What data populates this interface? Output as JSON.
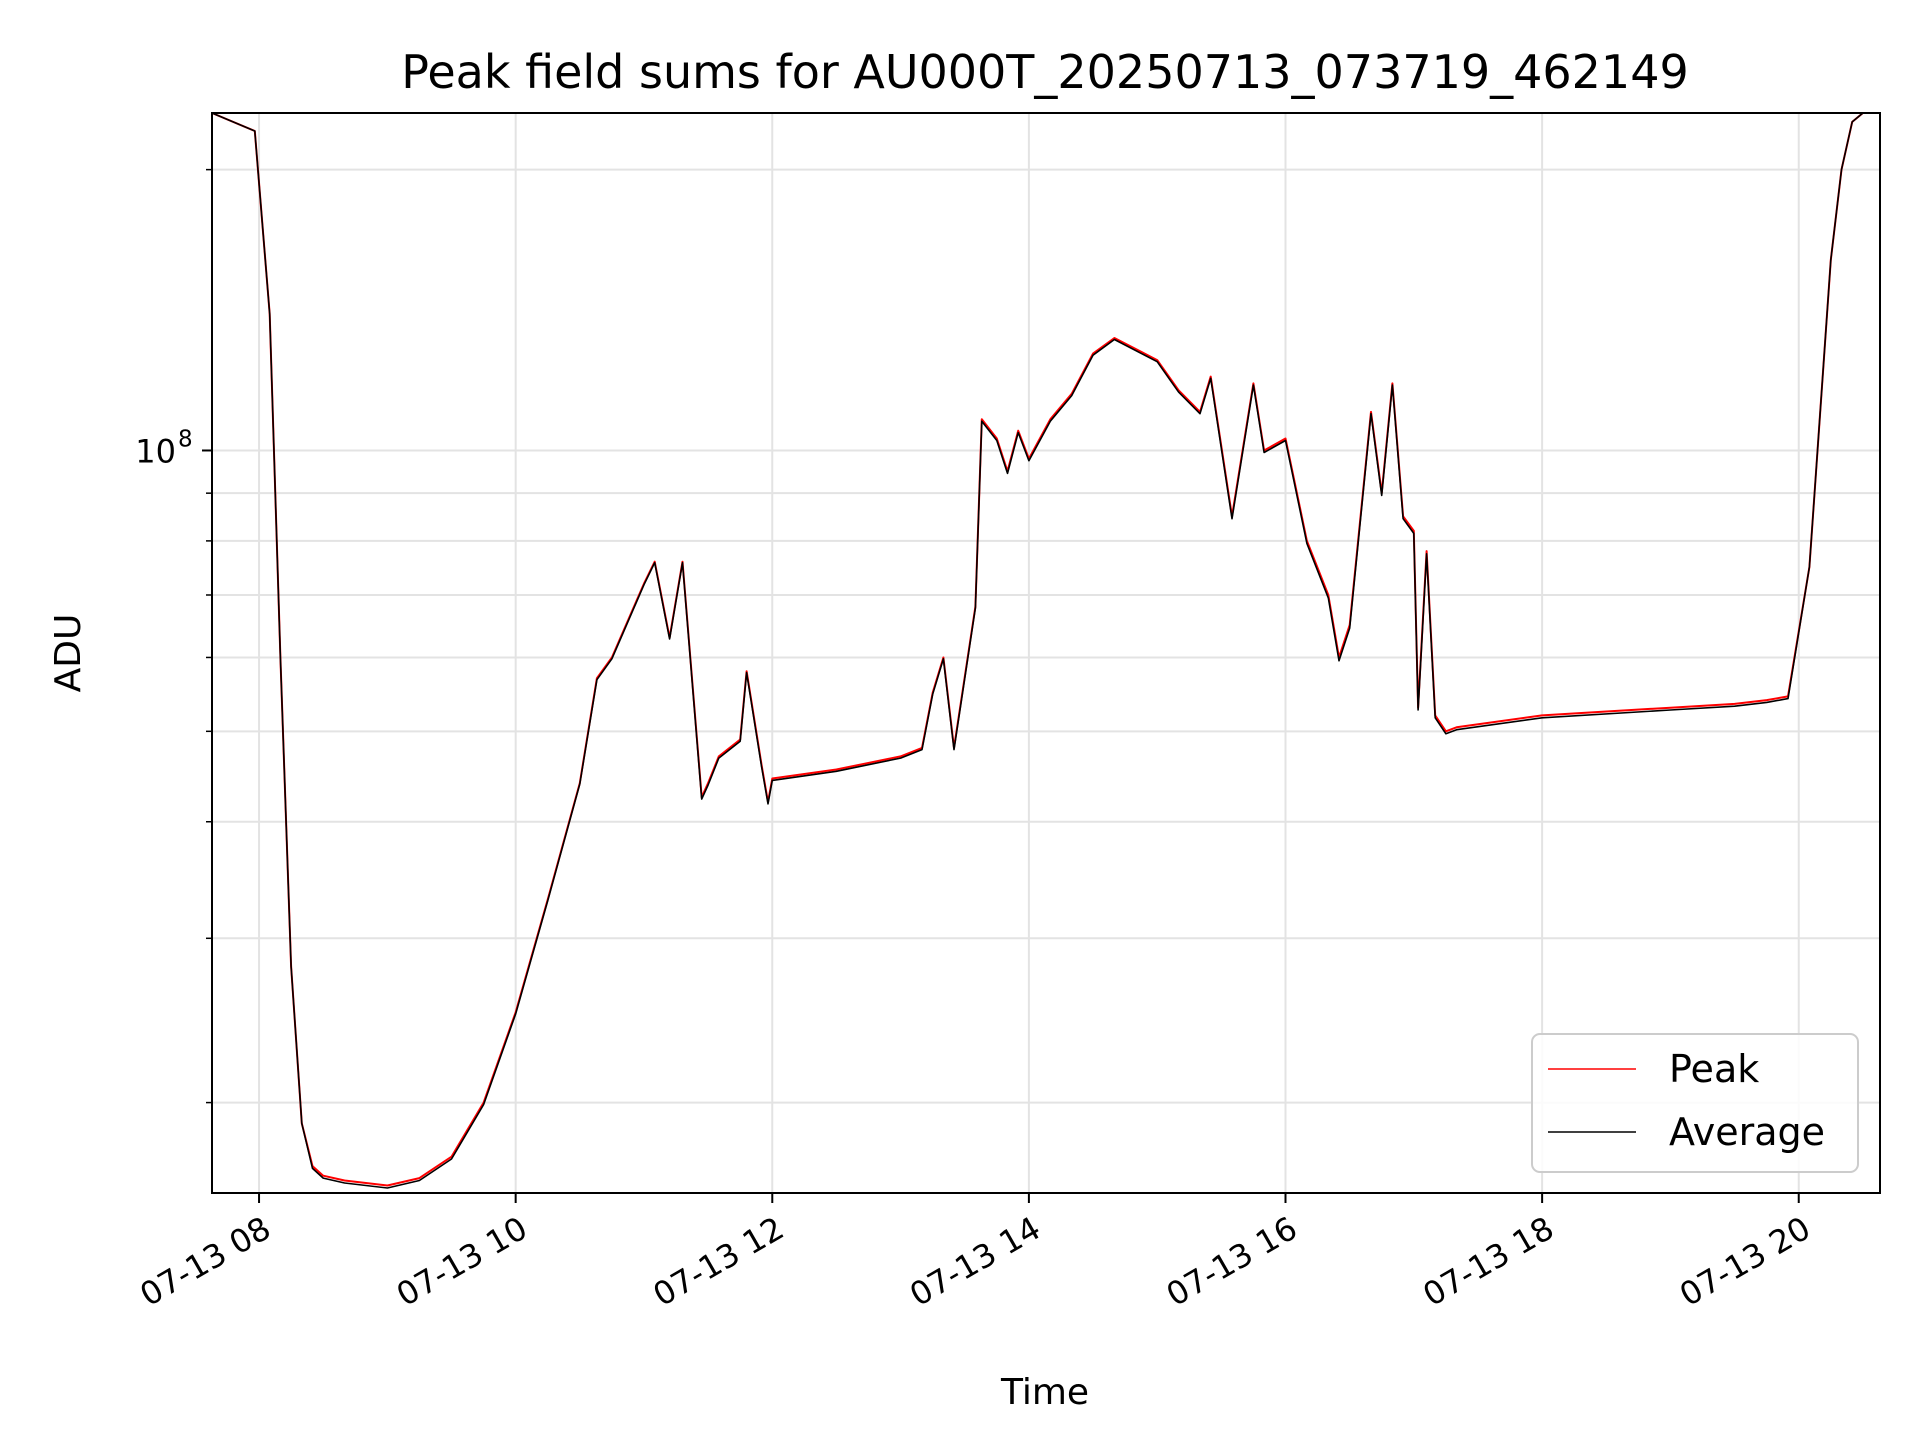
{
  "chart_data": {
    "type": "line",
    "title": "Peak field sums for AU000T_20250713_073719_462149",
    "xlabel": "Time",
    "ylabel": "ADU",
    "y_scale": "log",
    "ylim": [
      16000000,
      230000000
    ],
    "xlim": [
      "07-13 07:38",
      "07-13 20:38"
    ],
    "grid": true,
    "legend_position": "bottom-right",
    "x_ticks": [
      {
        "value": "07-13 08:00",
        "label": "07-13 08"
      },
      {
        "value": "07-13 10:00",
        "label": "07-13 10"
      },
      {
        "value": "07-13 12:00",
        "label": "07-13 12"
      },
      {
        "value": "07-13 14:00",
        "label": "07-13 14"
      },
      {
        "value": "07-13 16:00",
        "label": "07-13 16"
      },
      {
        "value": "07-13 18:00",
        "label": "07-13 18"
      },
      {
        "value": "07-13 20:00",
        "label": "07-13 20"
      }
    ],
    "y_major_ticks": [
      {
        "value": 100000000,
        "base": "10",
        "exponent": "8"
      }
    ],
    "y_minor_ticks": [
      20000000,
      30000000,
      40000000,
      50000000,
      60000000,
      70000000,
      80000000,
      90000000,
      200000000
    ],
    "x": [
      "07-13 07:38",
      "07-13 07:58",
      "07-13 08:05",
      "07-13 08:10",
      "07-13 08:15",
      "07-13 08:20",
      "07-13 08:25",
      "07-13 08:30",
      "07-13 08:40",
      "07-13 09:00",
      "07-13 09:15",
      "07-13 09:30",
      "07-13 09:45",
      "07-13 10:00",
      "07-13 10:15",
      "07-13 10:30",
      "07-13 10:38",
      "07-13 10:45",
      "07-13 11:00",
      "07-13 11:05",
      "07-13 11:12",
      "07-13 11:18",
      "07-13 11:27",
      "07-13 11:30",
      "07-13 11:35",
      "07-13 11:45",
      "07-13 11:48",
      "07-13 11:55",
      "07-13 11:58",
      "07-13 12:00",
      "07-13 12:30",
      "07-13 13:00",
      "07-13 13:10",
      "07-13 13:15",
      "07-13 13:20",
      "07-13 13:25",
      "07-13 13:35",
      "07-13 13:38",
      "07-13 13:45",
      "07-13 13:50",
      "07-13 13:55",
      "07-13 14:00",
      "07-13 14:10",
      "07-13 14:20",
      "07-13 14:30",
      "07-13 14:40",
      "07-13 15:00",
      "07-13 15:10",
      "07-13 15:20",
      "07-13 15:25",
      "07-13 15:35",
      "07-13 15:45",
      "07-13 15:50",
      "07-13 16:00",
      "07-13 16:10",
      "07-13 16:20",
      "07-13 16:25",
      "07-13 16:30",
      "07-13 16:40",
      "07-13 16:45",
      "07-13 16:50",
      "07-13 16:55",
      "07-13 17:00",
      "07-13 17:02",
      "07-13 17:06",
      "07-13 17:10",
      "07-13 17:15",
      "07-13 17:20",
      "07-13 18:00",
      "07-13 19:00",
      "07-13 19:30",
      "07-13 19:45",
      "07-13 19:55",
      "07-13 20:05",
      "07-13 20:15",
      "07-13 20:20",
      "07-13 20:25",
      "07-13 20:30",
      "07-13 20:38"
    ],
    "series": [
      {
        "name": "Peak",
        "color": "#ff0000",
        "values": [
          230000000,
          220000000,
          140000000,
          60000000,
          28000000,
          19000000,
          17100000,
          16700000,
          16500000,
          16300000,
          16600000,
          17500000,
          20000000,
          25000000,
          33000000,
          44000000,
          57000000,
          60000000,
          72000000,
          76000000,
          63000000,
          76000000,
          42500000,
          44000000,
          47000000,
          49000000,
          58000000,
          46000000,
          42000000,
          44500000,
          45500000,
          47000000,
          48000000,
          55000000,
          60000000,
          48000000,
          68000000,
          108000000,
          103000000,
          95000000,
          105000000,
          98000000,
          108000000,
          115000000,
          127000000,
          132000000,
          125000000,
          116000000,
          110000000,
          120000000,
          85000000,
          118000000,
          100000000,
          103000000,
          80000000,
          70000000,
          60000000,
          65000000,
          110000000,
          90000000,
          118000000,
          85000000,
          82000000,
          53000000,
          78000000,
          52000000,
          50000000,
          50500000,
          52000000,
          53000000,
          53500000,
          54000000,
          54500000,
          75000000,
          160000000,
          200000000,
          225000000,
          230000000,
          230000000
        ]
      },
      {
        "name": "Average",
        "color": "#000000",
        "values": [
          230000000,
          220000000,
          140000000,
          60000000,
          28000000,
          19000000,
          17000000,
          16600000,
          16400000,
          16200000,
          16500000,
          17400000,
          19900000,
          24900000,
          32900000,
          43900000,
          56800000,
          59800000,
          71800000,
          75800000,
          62800000,
          75800000,
          42300000,
          43800000,
          46800000,
          48800000,
          57800000,
          45800000,
          41800000,
          44300000,
          45300000,
          46800000,
          47800000,
          54800000,
          59800000,
          47800000,
          67800000,
          107500000,
          102500000,
          94500000,
          104500000,
          97500000,
          107500000,
          114500000,
          126500000,
          131500000,
          124500000,
          115500000,
          109500000,
          119500000,
          84500000,
          117500000,
          99500000,
          102500000,
          79500000,
          69500000,
          59500000,
          64500000,
          109500000,
          89500000,
          117500000,
          84500000,
          81500000,
          52700000,
          77500000,
          51700000,
          49700000,
          50200000,
          51700000,
          52700000,
          53200000,
          53700000,
          54200000,
          75000000,
          160000000,
          200000000,
          225000000,
          230000000,
          230000000
        ]
      }
    ]
  }
}
